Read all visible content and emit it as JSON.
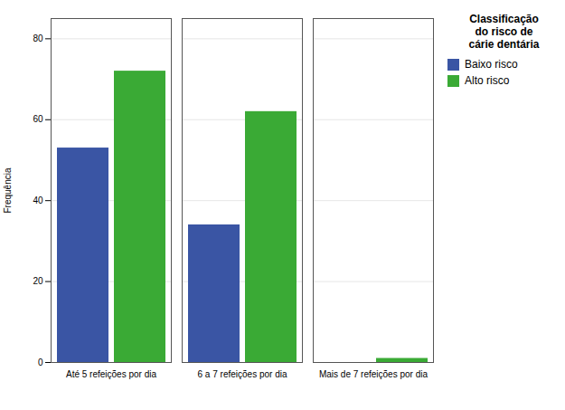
{
  "chart_data": {
    "type": "bar",
    "categories": [
      "Até 5 refeições por dia",
      "6 a 7 refeições por dia",
      "Mais de 7 refeições por dia"
    ],
    "series": [
      {
        "name": "Baixo risco",
        "color": "#3a55a4",
        "values": [
          53,
          34,
          0
        ]
      },
      {
        "name": "Alto risco",
        "color": "#3aaa35",
        "values": [
          72,
          62,
          1
        ]
      }
    ],
    "ylabel": "Frequência",
    "ylim": [
      0,
      85
    ],
    "yticks": [
      0,
      20,
      40,
      60,
      80
    ],
    "grid": true,
    "legend": "right",
    "legend_title": "Classificação\ndo risco de\ncárie dentária"
  }
}
